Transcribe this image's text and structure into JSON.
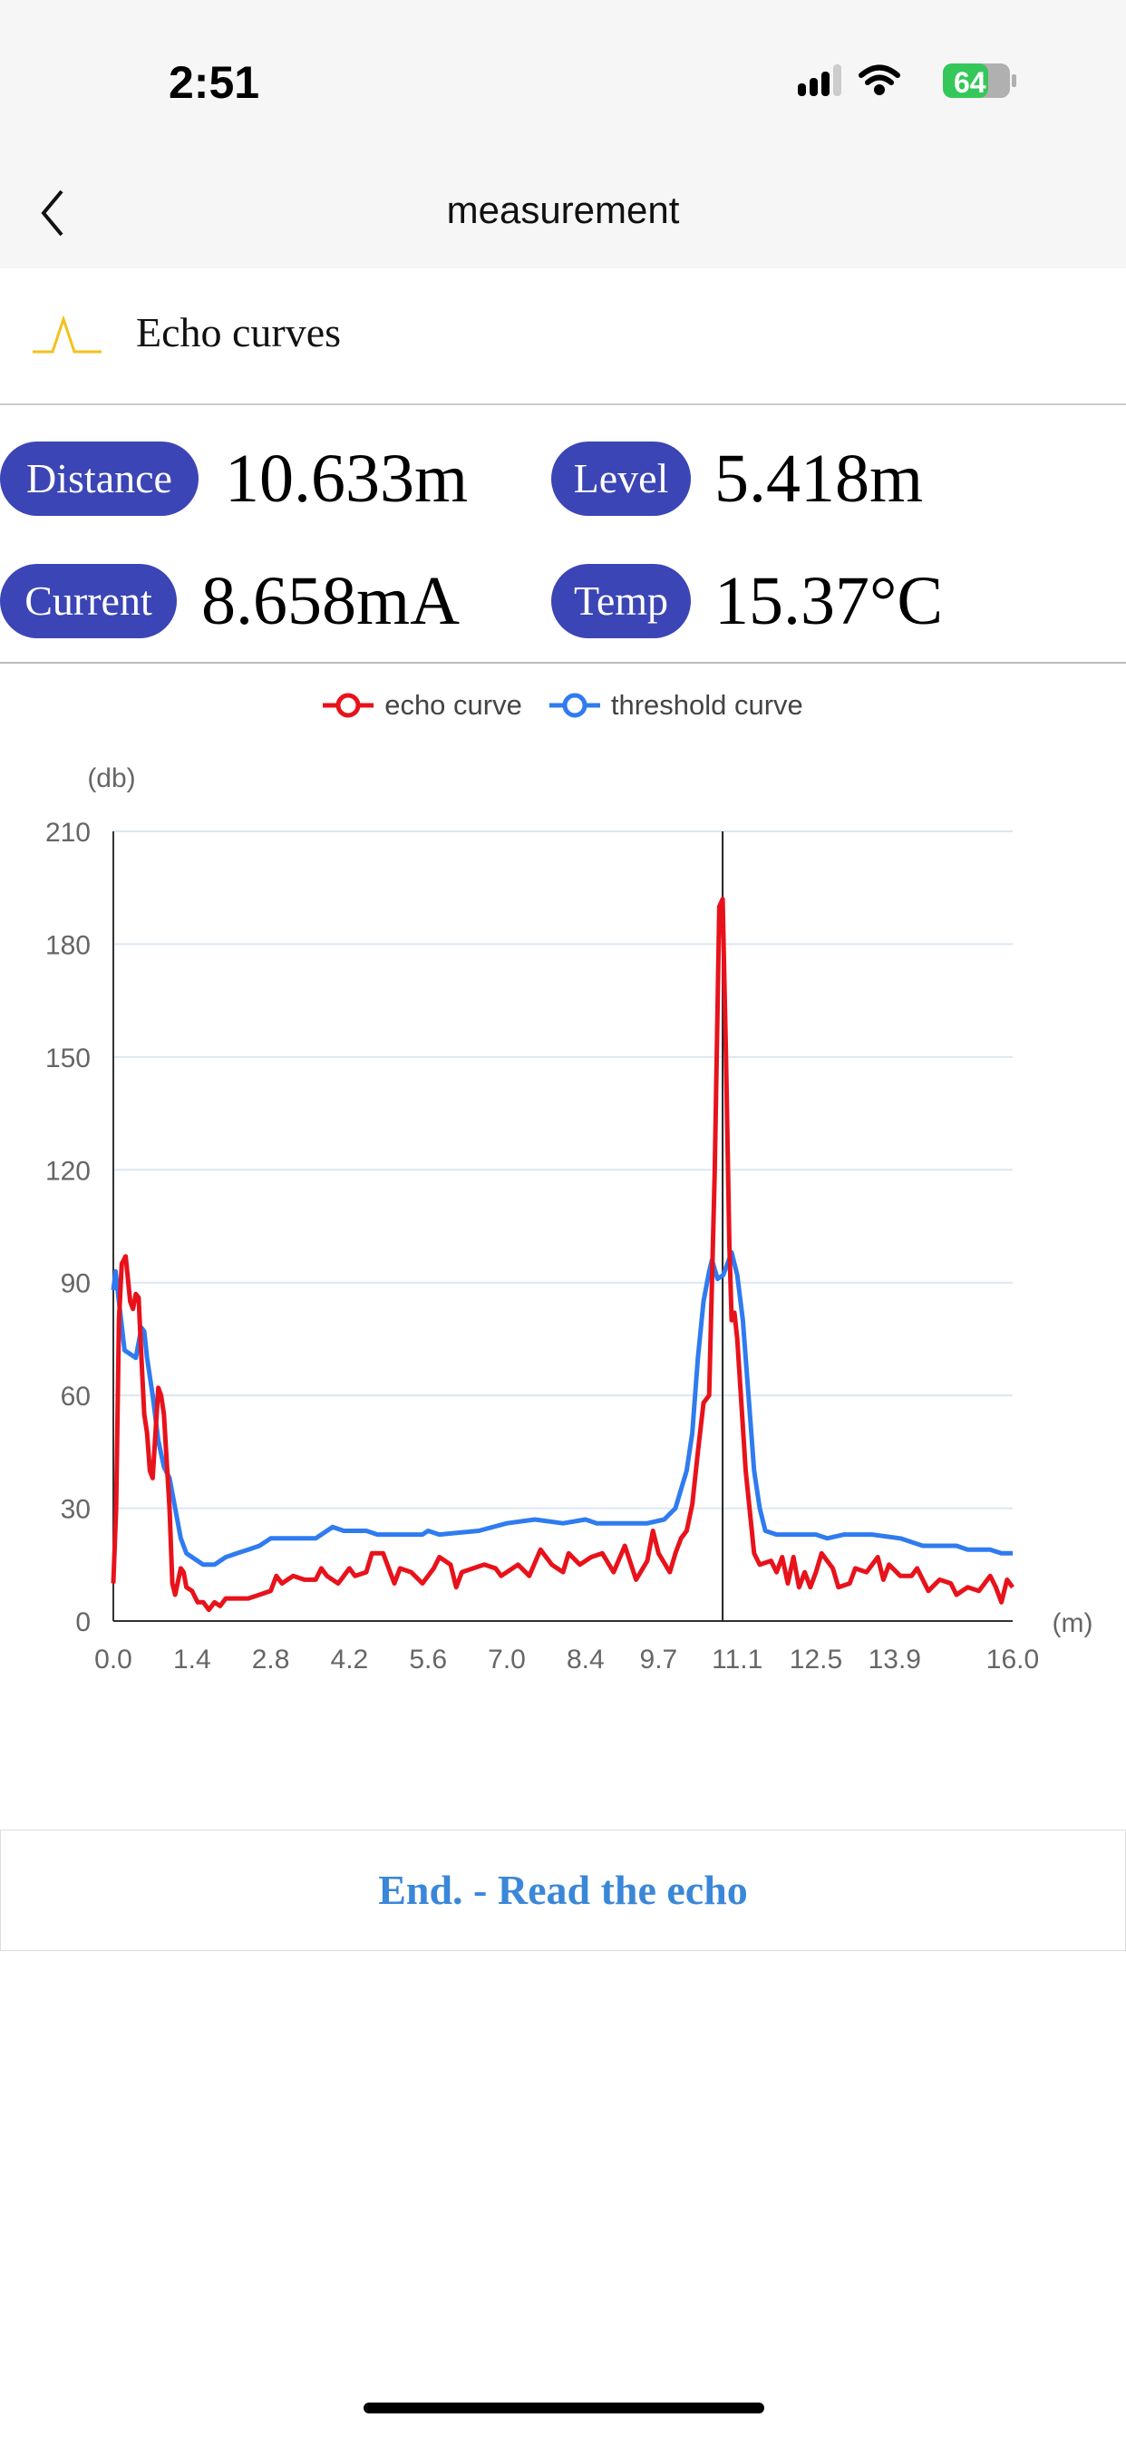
{
  "status_bar": {
    "time": "2:51",
    "battery": "64"
  },
  "header": {
    "title": "measurement"
  },
  "section": {
    "title": "Echo curves"
  },
  "readings": [
    {
      "label": "Distance",
      "value": "10.633m"
    },
    {
      "label": "Level",
      "value": "5.418m"
    },
    {
      "label": "Current",
      "value": "8.658mA"
    },
    {
      "label": "Temp",
      "value": "15.37°C"
    }
  ],
  "button": {
    "label": "End. - Read the echo"
  },
  "colors": {
    "accent": "#3c45b5",
    "echo": "#e8121b",
    "threshold": "#2f7bf0",
    "button_text": "#3a87d9"
  },
  "chart_data": {
    "type": "line",
    "ylabel": "(db)",
    "xlabel": "(m)",
    "ylim": [
      0,
      210
    ],
    "xlim": [
      0,
      16
    ],
    "yticks": [
      0,
      30,
      60,
      90,
      120,
      150,
      180,
      210
    ],
    "xticks": [
      "0.0",
      "1.4",
      "2.8",
      "4.2",
      "5.6",
      "7.0",
      "8.4",
      "9.7",
      "11.1",
      "12.5",
      "13.9",
      "16.0"
    ],
    "grid": true,
    "legend": "top-center",
    "marker_x": 10.84,
    "series": [
      {
        "name": "echo curve",
        "color": "#e8121b",
        "points": [
          [
            0,
            10
          ],
          [
            0.05,
            30
          ],
          [
            0.1,
            80
          ],
          [
            0.15,
            95
          ],
          [
            0.22,
            97
          ],
          [
            0.3,
            85
          ],
          [
            0.35,
            83
          ],
          [
            0.4,
            87
          ],
          [
            0.45,
            86
          ],
          [
            0.5,
            70
          ],
          [
            0.55,
            55
          ],
          [
            0.6,
            50
          ],
          [
            0.65,
            40
          ],
          [
            0.7,
            38
          ],
          [
            0.75,
            50
          ],
          [
            0.8,
            62
          ],
          [
            0.85,
            60
          ],
          [
            0.9,
            55
          ],
          [
            1.0,
            30
          ],
          [
            1.05,
            10
          ],
          [
            1.1,
            7
          ],
          [
            1.2,
            14
          ],
          [
            1.25,
            13
          ],
          [
            1.3,
            9
          ],
          [
            1.4,
            8
          ],
          [
            1.5,
            5
          ],
          [
            1.6,
            5
          ],
          [
            1.7,
            3
          ],
          [
            1.8,
            5
          ],
          [
            1.9,
            4
          ],
          [
            2.0,
            6
          ],
          [
            2.2,
            6
          ],
          [
            2.4,
            6
          ],
          [
            2.6,
            7
          ],
          [
            2.8,
            8
          ],
          [
            2.9,
            12
          ],
          [
            3.0,
            10
          ],
          [
            3.2,
            12
          ],
          [
            3.4,
            11
          ],
          [
            3.6,
            11
          ],
          [
            3.7,
            14
          ],
          [
            3.8,
            12
          ],
          [
            3.9,
            11
          ],
          [
            4.0,
            10
          ],
          [
            4.1,
            12
          ],
          [
            4.2,
            14
          ],
          [
            4.3,
            12
          ],
          [
            4.5,
            13
          ],
          [
            4.6,
            18
          ],
          [
            4.8,
            18
          ],
          [
            5.0,
            10
          ],
          [
            5.1,
            14
          ],
          [
            5.3,
            13
          ],
          [
            5.5,
            10
          ],
          [
            5.7,
            14
          ],
          [
            5.8,
            17
          ],
          [
            5.9,
            16
          ],
          [
            6.0,
            15
          ],
          [
            6.1,
            9
          ],
          [
            6.2,
            13
          ],
          [
            6.4,
            14
          ],
          [
            6.6,
            15
          ],
          [
            6.8,
            14
          ],
          [
            6.9,
            12
          ],
          [
            7.0,
            13
          ],
          [
            7.2,
            15
          ],
          [
            7.4,
            12
          ],
          [
            7.6,
            19
          ],
          [
            7.8,
            15
          ],
          [
            8.0,
            13
          ],
          [
            8.1,
            18
          ],
          [
            8.3,
            15
          ],
          [
            8.5,
            17
          ],
          [
            8.7,
            18
          ],
          [
            8.9,
            13
          ],
          [
            9.1,
            20
          ],
          [
            9.3,
            11
          ],
          [
            9.5,
            16
          ],
          [
            9.6,
            24
          ],
          [
            9.7,
            18
          ],
          [
            9.9,
            13
          ],
          [
            10.0,
            18
          ],
          [
            10.1,
            22
          ],
          [
            10.2,
            24
          ],
          [
            10.3,
            31
          ],
          [
            10.4,
            45
          ],
          [
            10.5,
            58
          ],
          [
            10.6,
            60
          ],
          [
            10.7,
            120
          ],
          [
            10.78,
            190
          ],
          [
            10.84,
            192
          ],
          [
            10.9,
            150
          ],
          [
            10.96,
            100
          ],
          [
            11.0,
            80
          ],
          [
            11.05,
            82
          ],
          [
            11.1,
            75
          ],
          [
            11.25,
            40
          ],
          [
            11.4,
            18
          ],
          [
            11.5,
            15
          ],
          [
            11.7,
            16
          ],
          [
            11.8,
            13
          ],
          [
            11.9,
            17
          ],
          [
            12.0,
            10
          ],
          [
            12.1,
            17
          ],
          [
            12.2,
            9
          ],
          [
            12.3,
            13
          ],
          [
            12.4,
            9
          ],
          [
            12.5,
            13
          ],
          [
            12.6,
            18
          ],
          [
            12.8,
            14
          ],
          [
            12.9,
            9
          ],
          [
            13.1,
            10
          ],
          [
            13.2,
            14
          ],
          [
            13.4,
            13
          ],
          [
            13.6,
            17
          ],
          [
            13.7,
            11
          ],
          [
            13.8,
            15
          ],
          [
            14.0,
            12
          ],
          [
            14.2,
            12
          ],
          [
            14.3,
            14
          ],
          [
            14.5,
            8
          ],
          [
            14.7,
            11
          ],
          [
            14.9,
            10
          ],
          [
            15.0,
            7
          ],
          [
            15.2,
            9
          ],
          [
            15.4,
            8
          ],
          [
            15.6,
            12
          ],
          [
            15.7,
            9
          ],
          [
            15.8,
            5
          ],
          [
            15.9,
            11
          ],
          [
            16.0,
            9
          ]
        ]
      },
      {
        "name": "threshold curve",
        "color": "#2f7bf0",
        "points": [
          [
            0,
            88
          ],
          [
            0.04,
            93
          ],
          [
            0.1,
            85
          ],
          [
            0.2,
            72
          ],
          [
            0.3,
            71
          ],
          [
            0.4,
            70
          ],
          [
            0.5,
            78
          ],
          [
            0.55,
            77
          ],
          [
            0.6,
            70
          ],
          [
            0.7,
            60
          ],
          [
            0.8,
            48
          ],
          [
            0.9,
            41
          ],
          [
            1.0,
            38
          ],
          [
            1.1,
            30
          ],
          [
            1.2,
            22
          ],
          [
            1.3,
            18
          ],
          [
            1.4,
            17
          ],
          [
            1.6,
            15
          ],
          [
            1.8,
            15
          ],
          [
            2.0,
            17
          ],
          [
            2.2,
            18
          ],
          [
            2.4,
            19
          ],
          [
            2.6,
            20
          ],
          [
            2.8,
            22
          ],
          [
            3.0,
            22
          ],
          [
            3.6,
            22
          ],
          [
            3.8,
            24
          ],
          [
            3.9,
            25
          ],
          [
            4.1,
            24
          ],
          [
            4.5,
            24
          ],
          [
            4.7,
            23
          ],
          [
            5.5,
            23
          ],
          [
            5.6,
            24
          ],
          [
            5.8,
            23
          ],
          [
            6.5,
            24
          ],
          [
            7.0,
            26
          ],
          [
            7.5,
            27
          ],
          [
            8.0,
            26
          ],
          [
            8.4,
            27
          ],
          [
            8.6,
            26
          ],
          [
            9.0,
            26
          ],
          [
            9.5,
            26
          ],
          [
            9.8,
            27
          ],
          [
            10.0,
            30
          ],
          [
            10.1,
            35
          ],
          [
            10.2,
            40
          ],
          [
            10.3,
            50
          ],
          [
            10.4,
            70
          ],
          [
            10.5,
            85
          ],
          [
            10.6,
            93
          ],
          [
            10.65,
            96
          ],
          [
            10.75,
            91
          ],
          [
            10.85,
            92
          ],
          [
            10.95,
            96
          ],
          [
            11.0,
            98
          ],
          [
            11.1,
            92
          ],
          [
            11.2,
            80
          ],
          [
            11.3,
            60
          ],
          [
            11.4,
            40
          ],
          [
            11.5,
            30
          ],
          [
            11.6,
            24
          ],
          [
            11.8,
            23
          ],
          [
            12.5,
            23
          ],
          [
            12.7,
            22
          ],
          [
            13.0,
            23
          ],
          [
            13.5,
            23
          ],
          [
            14.0,
            22
          ],
          [
            14.2,
            21
          ],
          [
            14.4,
            20
          ],
          [
            15.0,
            20
          ],
          [
            15.2,
            19
          ],
          [
            15.6,
            19
          ],
          [
            15.8,
            18
          ],
          [
            16.0,
            18
          ]
        ]
      }
    ]
  }
}
